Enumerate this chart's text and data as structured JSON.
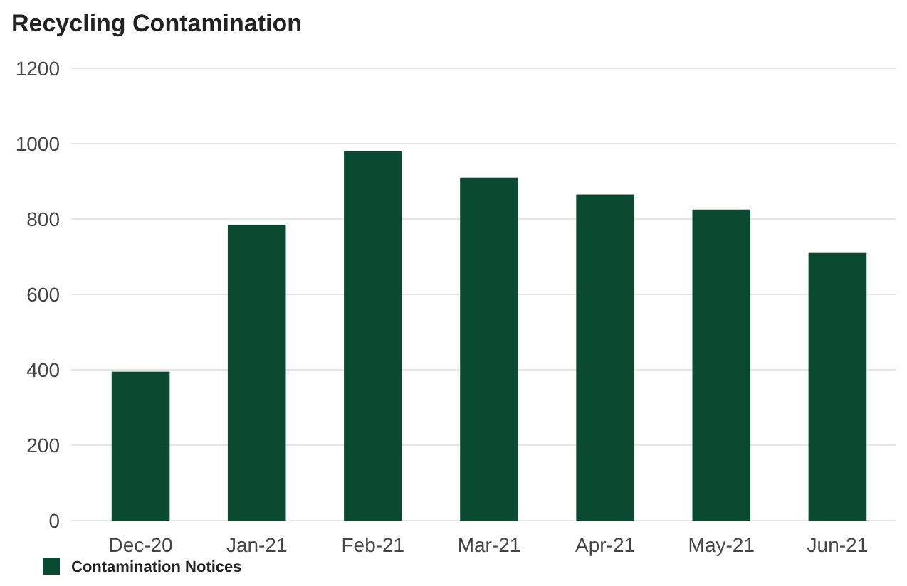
{
  "chart_data": {
    "type": "bar",
    "title": "Recycling Contamination",
    "categories": [
      "Dec-20",
      "Jan-21",
      "Feb-21",
      "Mar-21",
      "Apr-21",
      "May-21",
      "Jun-21"
    ],
    "series": [
      {
        "name": "Contamination Notices",
        "color": "#0b4a32",
        "values": [
          395,
          785,
          980,
          910,
          865,
          825,
          710
        ]
      }
    ],
    "ylim": [
      0,
      1200
    ],
    "yticks": [
      0,
      200,
      400,
      600,
      800,
      1000,
      1200
    ],
    "grid": "y",
    "legend": "bottom left"
  }
}
